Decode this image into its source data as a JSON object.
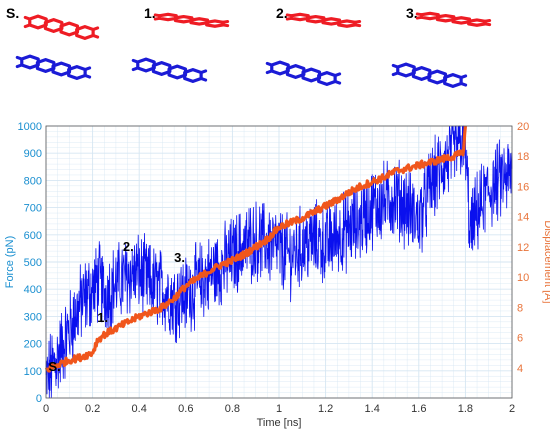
{
  "colors": {
    "top_molecule": "#ee1c24",
    "bottom_molecule": "#1b1bd6",
    "force_series": "#0a10ee",
    "displacement_series": "#f0561c",
    "left_axis": "#1a8fd0",
    "right_axis": "#e8743b",
    "grid": "#d6e6f2"
  },
  "panels": [
    {
      "label": "S.",
      "geometry": "stacked"
    },
    {
      "label": "1.",
      "geometry": "shifted"
    },
    {
      "label": "2.",
      "geometry": "shifted-far"
    },
    {
      "label": "3.",
      "geometry": "separated"
    }
  ],
  "chart_data": {
    "type": "line",
    "title": "",
    "xlabel": "Time [ns]",
    "ylabel_left": "Force (pN)",
    "ylabel_right": "Displacement [A]",
    "xlim": [
      0,
      2
    ],
    "ylim_left": [
      0,
      1000
    ],
    "ylim_right": [
      2,
      20
    ],
    "x_ticks": [
      "0",
      "0.2",
      "0.4",
      "0.6",
      "0.8",
      "1",
      "1.2",
      "1.4",
      "1.6",
      "1.8",
      "2"
    ],
    "y_left_ticks": [
      "0",
      "100",
      "200",
      "300",
      "400",
      "500",
      "600",
      "700",
      "800",
      "900",
      "1000"
    ],
    "y_right_ticks": [
      "4",
      "6",
      "8",
      "10",
      "12",
      "14",
      "16",
      "18",
      "20"
    ],
    "grid": "on",
    "series": [
      {
        "axis": "left",
        "x": [
          0,
          0.02,
          0.05,
          0.1,
          0.15,
          0.2,
          0.23,
          0.25,
          0.3,
          0.35,
          0.4,
          0.45,
          0.5,
          0.55,
          0.6,
          0.65,
          0.7,
          0.75,
          0.8,
          0.85,
          0.9,
          0.95,
          1.0,
          1.05,
          1.1,
          1.15,
          1.2,
          1.25,
          1.3,
          1.35,
          1.4,
          1.45,
          1.5,
          1.55,
          1.6,
          1.65,
          1.7,
          1.75,
          1.78,
          1.8,
          1.82,
          1.85,
          1.9,
          1.95,
          2.0
        ],
        "values": [
          60,
          100,
          150,
          250,
          350,
          400,
          430,
          380,
          420,
          450,
          460,
          420,
          400,
          360,
          380,
          420,
          450,
          480,
          520,
          560,
          580,
          570,
          550,
          520,
          560,
          580,
          560,
          600,
          620,
          650,
          700,
          720,
          740,
          700,
          650,
          780,
          850,
          900,
          950,
          920,
          600,
          680,
          760,
          800,
          820
        ]
      },
      {
        "axis": "right",
        "x": [
          0,
          0.02,
          0.05,
          0.1,
          0.15,
          0.2,
          0.22,
          0.25,
          0.3,
          0.35,
          0.4,
          0.45,
          0.5,
          0.55,
          0.6,
          0.65,
          0.7,
          0.75,
          0.8,
          0.85,
          0.9,
          0.95,
          1.0,
          1.05,
          1.1,
          1.15,
          1.2,
          1.25,
          1.3,
          1.35,
          1.4,
          1.45,
          1.5,
          1.55,
          1.6,
          1.65,
          1.7,
          1.75,
          1.79,
          1.8
        ],
        "values": [
          3.8,
          4.0,
          4.2,
          4.5,
          4.7,
          5.0,
          5.8,
          6.2,
          6.6,
          7.0,
          7.4,
          7.7,
          8.0,
          8.6,
          9.4,
          9.9,
          10.4,
          10.8,
          11.1,
          11.5,
          12.0,
          12.5,
          13.3,
          13.6,
          13.9,
          14.3,
          14.7,
          15.1,
          15.6,
          16.0,
          16.3,
          16.6,
          17.0,
          17.2,
          17.4,
          17.6,
          17.8,
          18.0,
          18.2,
          20.0
        ]
      }
    ],
    "annotations": [
      {
        "text": "S.",
        "x": 0.01,
        "y_left": 100
      },
      {
        "text": "1.",
        "x": 0.22,
        "y_left": 280
      },
      {
        "text": "2.",
        "x": 0.33,
        "y_left": 540
      },
      {
        "text": "3.",
        "x": 0.55,
        "y_left": 500
      }
    ]
  }
}
